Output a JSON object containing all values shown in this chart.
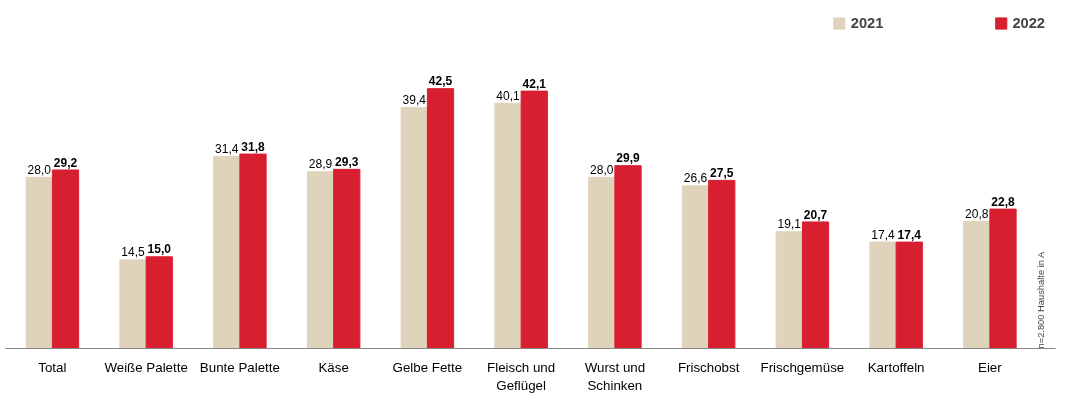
{
  "chart_data": {
    "type": "bar",
    "categories": [
      "Total",
      "Weiße Palette",
      "Bunte Palette",
      "Käse",
      "Gelbe Fette",
      "Fleisch und Geflügel",
      "Wurst und Schinken",
      "Frischobst",
      "Frischgemüse",
      "Kartoffeln",
      "Eier"
    ],
    "series": [
      {
        "name": "2021",
        "color": "#e0d3bc",
        "values": [
          28.0,
          14.5,
          31.4,
          28.9,
          39.4,
          40.1,
          28.0,
          26.6,
          19.1,
          17.4,
          20.8
        ],
        "value_labels": [
          "28,0",
          "14,5",
          "31,4",
          "28,9",
          "39,4",
          "40,1",
          "28,0",
          "26,6",
          "19,1",
          "17,4",
          "20,8"
        ]
      },
      {
        "name": "2022",
        "color": "#d71f30",
        "values": [
          29.2,
          15.0,
          31.8,
          29.3,
          42.5,
          42.1,
          29.9,
          27.5,
          20.7,
          17.4,
          22.8
        ],
        "value_labels": [
          "29,2",
          "15,0",
          "31,8",
          "29,3",
          "42,5",
          "42,1",
          "29,9",
          "27,5",
          "20,7",
          "17,4",
          "22,8"
        ]
      }
    ],
    "annotations": [
      "n=2.800 Haushalte in A"
    ],
    "legend": "top right",
    "grid": false
  }
}
